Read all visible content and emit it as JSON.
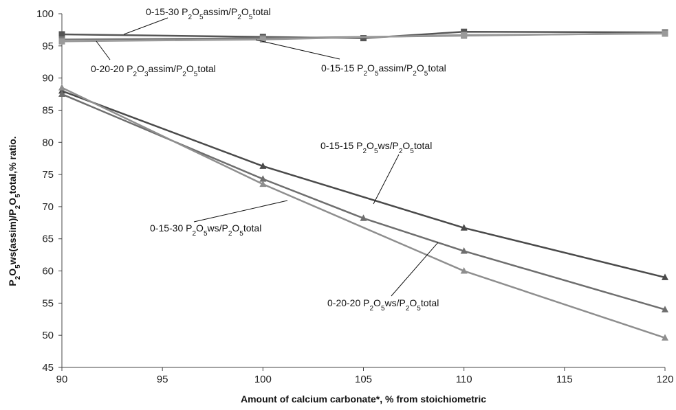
{
  "chart_data": {
    "type": "line",
    "title": "",
    "xlabel": "Amount of calcium carbonate*, % from stoichiometric",
    "ylabel": "P2O5ws(assim)/P2O5total,% ratio.",
    "xlim": [
      90,
      120
    ],
    "ylim": [
      45,
      100
    ],
    "xticks": [
      90,
      95,
      100,
      105,
      110,
      115,
      120
    ],
    "yticks": [
      45,
      50,
      55,
      60,
      65,
      70,
      75,
      80,
      85,
      90,
      95,
      100
    ],
    "grid": false,
    "legend": "none",
    "series": [
      {
        "name": "0-15-15 P2O5ws/P2O5total",
        "marker": "triangle",
        "color": "#4a4a4a",
        "x": [
          90,
          100,
          110,
          120
        ],
        "y": [
          88.0,
          76.3,
          66.7,
          59.0
        ]
      },
      {
        "name": "0-15-30 P2O5ws/P2O5total",
        "marker": "triangle",
        "color": "#6e6e6e",
        "x": [
          90,
          100,
          105,
          110,
          120
        ],
        "y": [
          87.5,
          74.3,
          68.2,
          63.1,
          54.0
        ]
      },
      {
        "name": "0-20-20 P2O5ws/P2O5total",
        "marker": "triangle",
        "color": "#8e8e8e",
        "x": [
          90,
          100,
          110,
          120
        ],
        "y": [
          88.5,
          73.5,
          60.0,
          49.6
        ]
      },
      {
        "name": "0-15-30 P2O5assim/P2O5total",
        "marker": "square",
        "color": "#555555",
        "x": [
          90,
          100,
          105,
          110,
          120
        ],
        "y": [
          96.8,
          96.4,
          96.2,
          97.2,
          97.1
        ]
      },
      {
        "name": "0-20-20 P2O3assim/P2O5total",
        "marker": "square",
        "color": "#7a7a7a",
        "x": [
          90,
          100,
          110,
          120
        ],
        "y": [
          96.0,
          96.2,
          96.6,
          97.0
        ]
      },
      {
        "name": "0-15-15 P2O5assim/P2O5total",
        "marker": "square",
        "color": "#9a9a9a",
        "x": [
          90,
          100,
          110,
          120
        ],
        "y": [
          95.7,
          96.0,
          96.7,
          96.9
        ]
      }
    ],
    "annotations": [
      {
        "parts": [
          [
            "0-15-30 P",
            "",
            ""
          ],
          [
            "2",
            "sub",
            ""
          ],
          [
            "O",
            "",
            ""
          ],
          [
            "5",
            "sub",
            ""
          ],
          [
            "assim/P",
            "",
            ""
          ],
          [
            "2",
            "sub",
            ""
          ],
          [
            "O",
            "",
            ""
          ],
          [
            "5",
            "sub",
            ""
          ],
          [
            "total",
            "",
            ""
          ]
        ]
      },
      {
        "parts": [
          [
            "0-20-20 P",
            "",
            ""
          ],
          [
            "2",
            "sub",
            ""
          ],
          [
            "O",
            "",
            ""
          ],
          [
            "3",
            "sub",
            ""
          ],
          [
            "assim/P",
            "",
            ""
          ],
          [
            "2",
            "sub",
            ""
          ],
          [
            "O",
            "",
            ""
          ],
          [
            "5",
            "sub",
            ""
          ],
          [
            "total",
            "",
            ""
          ]
        ]
      },
      {
        "parts": [
          [
            "0-15-15 P",
            "",
            ""
          ],
          [
            "2",
            "sub",
            ""
          ],
          [
            "O",
            "",
            ""
          ],
          [
            "5",
            "sub",
            ""
          ],
          [
            "assim/P",
            "",
            ""
          ],
          [
            "2",
            "sub",
            ""
          ],
          [
            "O",
            "",
            ""
          ],
          [
            "5",
            "sub",
            ""
          ],
          [
            "total",
            "",
            ""
          ]
        ]
      },
      {
        "parts": [
          [
            "0-15-15 P",
            "",
            ""
          ],
          [
            "2",
            "sub",
            ""
          ],
          [
            "O",
            "",
            ""
          ],
          [
            "5",
            "sub",
            ""
          ],
          [
            "ws/P",
            "",
            ""
          ],
          [
            "2",
            "sub",
            ""
          ],
          [
            "O",
            "",
            ""
          ],
          [
            "5",
            "sub",
            ""
          ],
          [
            "total",
            "",
            ""
          ]
        ]
      },
      {
        "parts": [
          [
            "0-15-30 P",
            "",
            ""
          ],
          [
            "2",
            "sub",
            ""
          ],
          [
            "O",
            "",
            ""
          ],
          [
            "5",
            "sub",
            ""
          ],
          [
            "ws/P",
            "",
            ""
          ],
          [
            "2",
            "sub",
            ""
          ],
          [
            "O",
            "",
            ""
          ],
          [
            "5",
            "sub",
            ""
          ],
          [
            "total",
            "",
            ""
          ]
        ]
      },
      {
        "parts": [
          [
            "0-20-20 P",
            "",
            ""
          ],
          [
            "2",
            "sub",
            ""
          ],
          [
            "O",
            "",
            ""
          ],
          [
            "5",
            "sub",
            ""
          ],
          [
            "ws/P",
            "",
            ""
          ],
          [
            "2",
            "sub",
            ""
          ],
          [
            "O",
            "",
            ""
          ],
          [
            "5",
            "sub",
            ""
          ],
          [
            "total",
            "",
            ""
          ]
        ]
      }
    ],
    "ylabel_parts": [
      [
        "P",
        "",
        ""
      ],
      [
        "2",
        "sub",
        ""
      ],
      [
        "O",
        "",
        ""
      ],
      [
        "5",
        "sub",
        ""
      ],
      [
        "ws(assim)/P",
        "",
        ""
      ],
      [
        "2",
        "sub",
        ""
      ],
      [
        "O",
        "",
        ""
      ],
      [
        "5",
        "sub",
        ""
      ],
      [
        "total,% ratio.",
        "",
        ""
      ]
    ]
  }
}
